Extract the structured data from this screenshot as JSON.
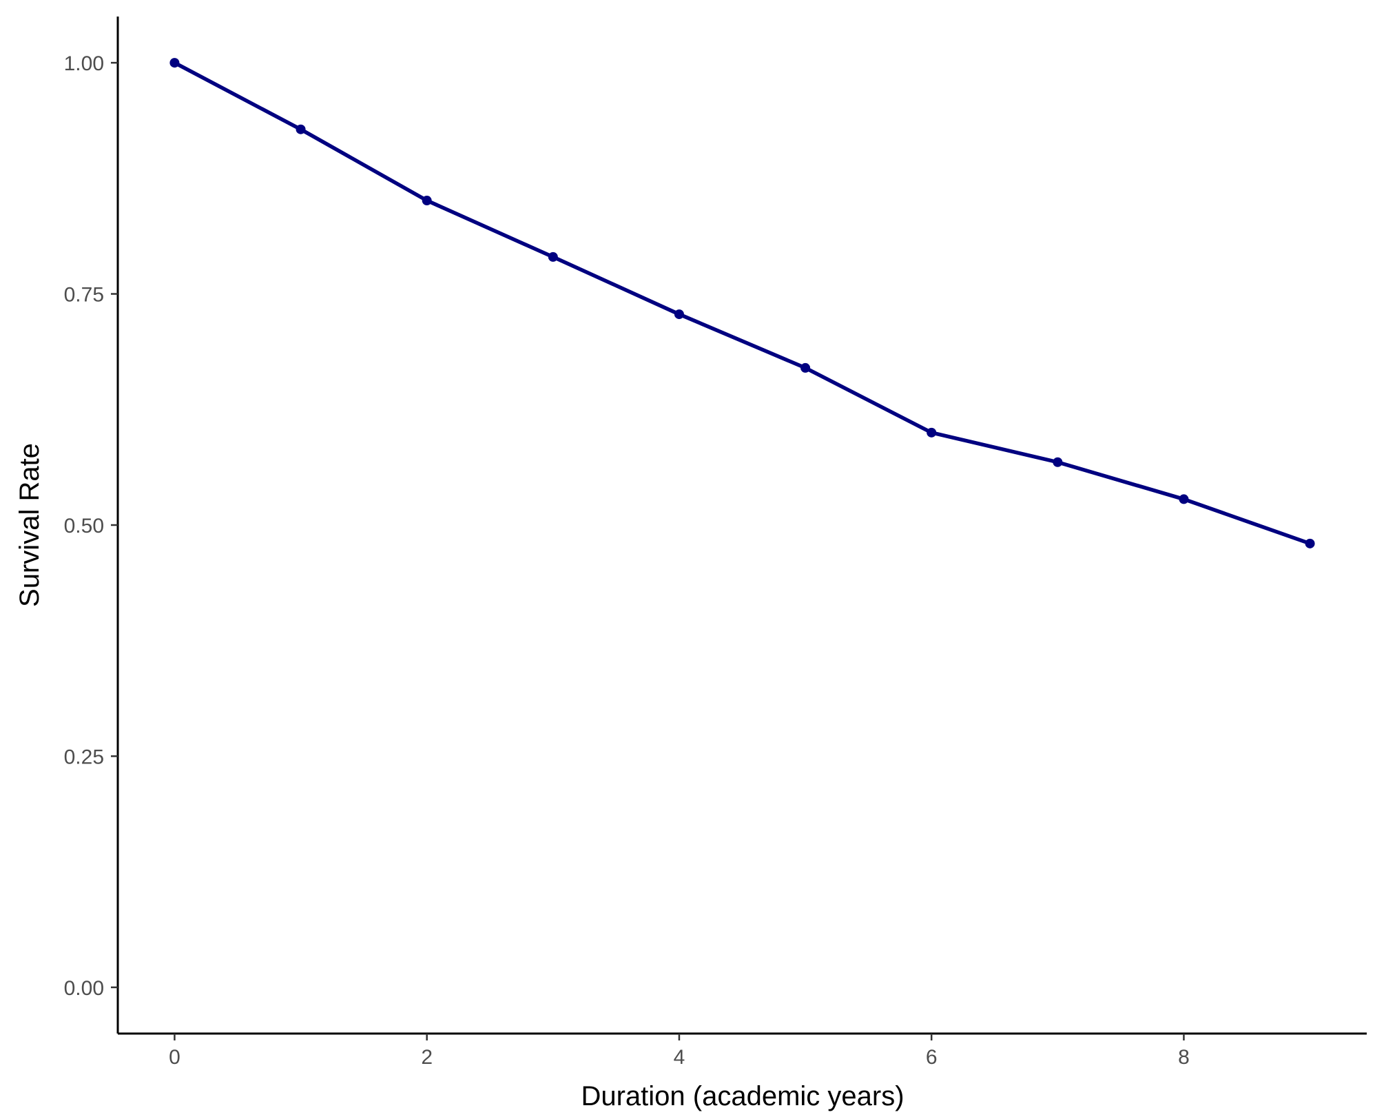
{
  "chart_data": {
    "type": "line",
    "title": "",
    "xlabel": "Duration (academic years)",
    "ylabel": "Survival Rate",
    "xlim": [
      -0.45,
      9.45
    ],
    "ylim": [
      -0.05,
      1.05
    ],
    "x_ticks": [
      0,
      2,
      4,
      6,
      8
    ],
    "x_tick_labels": [
      "0",
      "2",
      "4",
      "6",
      "8"
    ],
    "y_ticks": [
      0,
      0.25,
      0.5,
      0.75,
      1.0
    ],
    "y_tick_labels": [
      "0.00",
      "0.25",
      "0.50",
      "0.75",
      "1.00"
    ],
    "grid": false,
    "series": [
      {
        "color": "#000080",
        "x": [
          0,
          1,
          2,
          3,
          4,
          5,
          6,
          7,
          8,
          9
        ],
        "y": [
          1.0,
          0.928,
          0.851,
          0.79,
          0.728,
          0.67,
          0.6,
          0.568,
          0.528,
          0.48
        ]
      }
    ]
  }
}
